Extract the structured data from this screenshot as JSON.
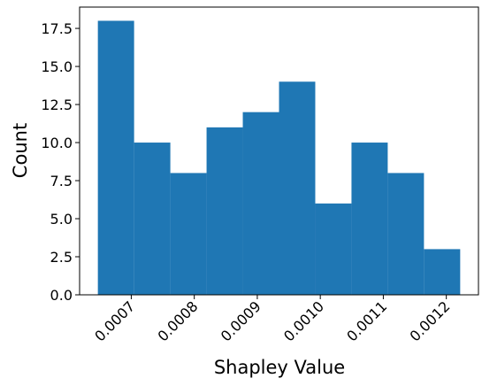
{
  "chart_data": {
    "type": "histogram",
    "xlabel": "Shapley Value",
    "ylabel": "Count",
    "bins": [
      0.000647,
      0.0007045,
      0.000762,
      0.0008195,
      0.000877,
      0.0009345,
      0.000992,
      0.0010495,
      0.001107,
      0.0011645,
      0.001222
    ],
    "values": [
      18,
      10,
      8,
      11,
      12,
      14,
      6,
      10,
      8,
      3
    ],
    "color": "#1f77b4",
    "xlim": [
      0.000618,
      0.001251
    ],
    "ylim": [
      0,
      18.9
    ],
    "xticks": [
      {
        "value": 0.0007,
        "label": "0.0007"
      },
      {
        "value": 0.0008,
        "label": "0.0008"
      },
      {
        "value": 0.0009,
        "label": "0.0009"
      },
      {
        "value": 0.001,
        "label": "0.0010"
      },
      {
        "value": 0.0011,
        "label": "0.0011"
      },
      {
        "value": 0.0012,
        "label": "0.0012"
      }
    ],
    "yticks": [
      {
        "value": 0,
        "label": "0.0"
      },
      {
        "value": 2.5,
        "label": "2.5"
      },
      {
        "value": 5,
        "label": "5.0"
      },
      {
        "value": 7.5,
        "label": "7.5"
      },
      {
        "value": 10,
        "label": "10.0"
      },
      {
        "value": 12.5,
        "label": "12.5"
      },
      {
        "value": 15,
        "label": "15.0"
      },
      {
        "value": 17.5,
        "label": "17.5"
      }
    ]
  }
}
